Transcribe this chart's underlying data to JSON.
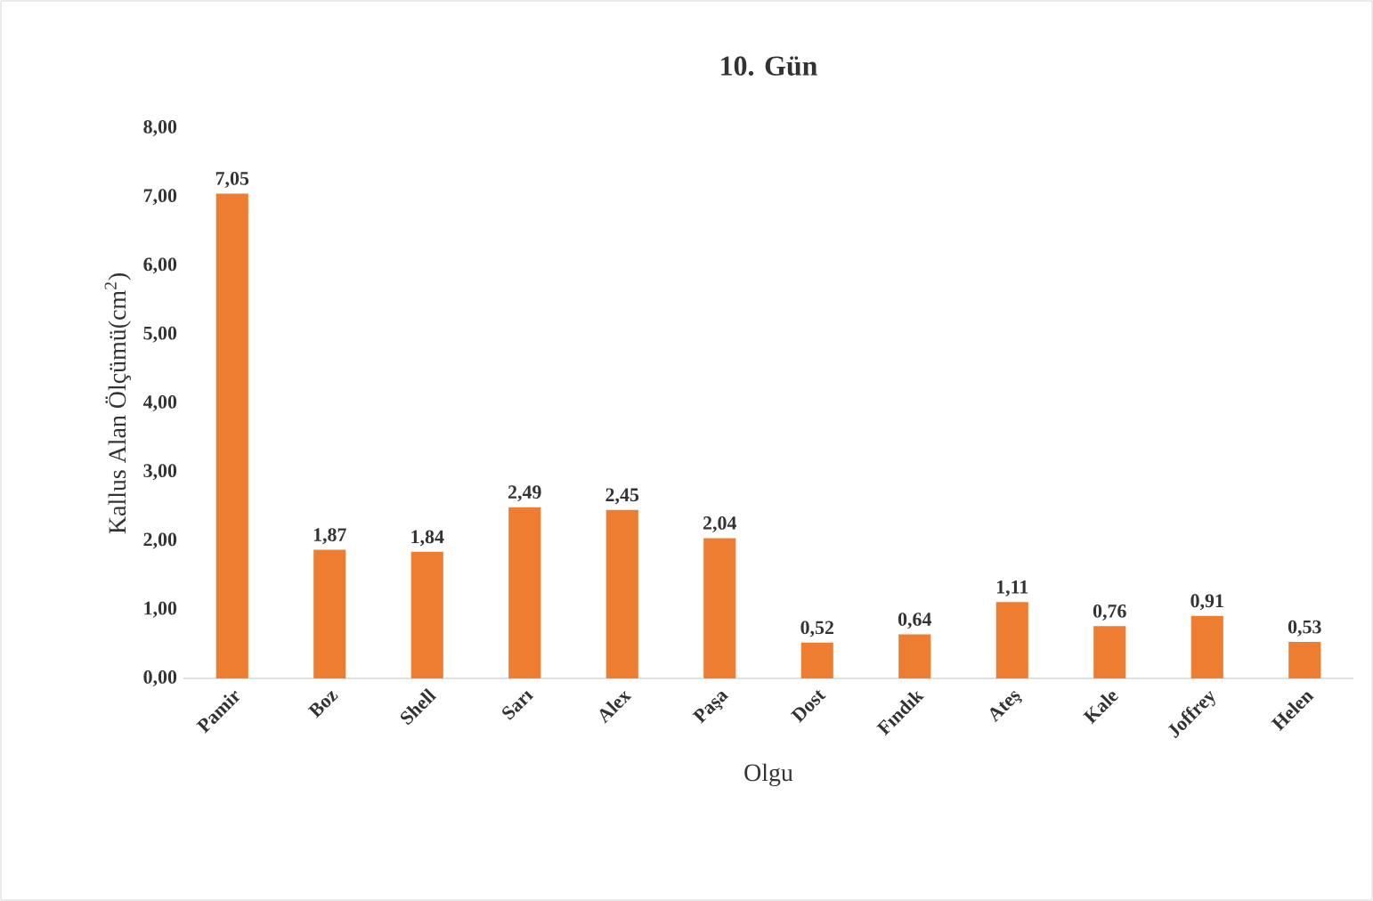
{
  "chart_data": {
    "type": "bar",
    "title": "10. Gün",
    "xlabel": "Olgu",
    "ylabel": "Kallus Alan Ölçümü(cm$^{2}$)",
    "categories": [
      "Pamir",
      "Boz",
      "Shell",
      "Sarı",
      "Alex",
      "Paşa",
      "Dost",
      "Fındık",
      "Ateş",
      "Kale",
      "Joffrey",
      "Helen"
    ],
    "values": [
      7.05,
      1.87,
      1.84,
      2.49,
      2.45,
      2.04,
      0.52,
      0.64,
      1.11,
      0.76,
      0.91,
      0.53
    ],
    "value_labels": [
      "7,05",
      "1,87",
      "1,84",
      "2,49",
      "2,45",
      "2,04",
      "0,52",
      "0,64",
      "1,11",
      "0,76",
      "0,91",
      "0,53"
    ],
    "color": "#ed7d31",
    "ylim": [
      0,
      8
    ],
    "yticks": [
      {
        "value": 0,
        "label": "0,00"
      },
      {
        "value": 1,
        "label": "1,00"
      },
      {
        "value": 2,
        "label": "2,00"
      },
      {
        "value": 3,
        "label": "3,00"
      },
      {
        "value": 4,
        "label": "4,00"
      },
      {
        "value": 5,
        "label": "5,00"
      },
      {
        "value": 6,
        "label": "6,00"
      },
      {
        "value": 7,
        "label": "7,00"
      },
      {
        "value": 8,
        "label": "8,00"
      }
    ]
  }
}
